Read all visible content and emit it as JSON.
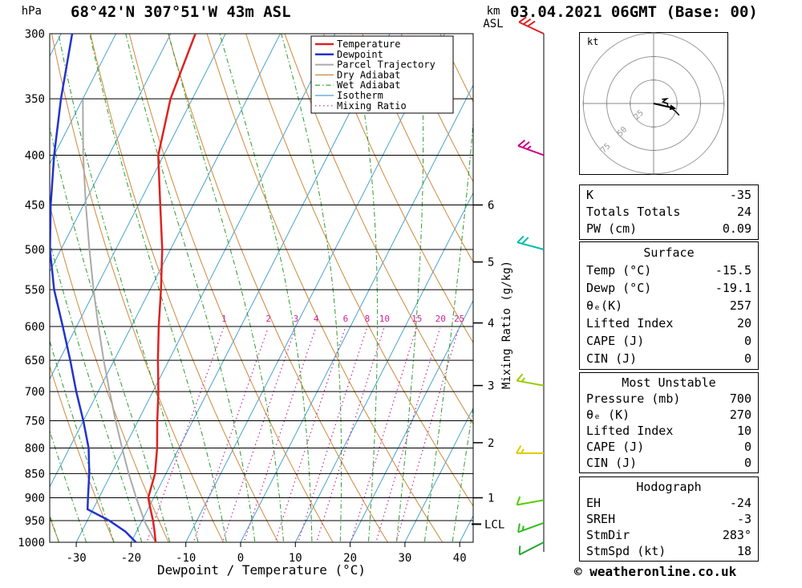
{
  "header": {
    "station_title": "68°42'N 307°51'W 43m ASL",
    "datetime_title": "03.04.2021 06GMT (Base: 00)",
    "pressure_unit": "hPa",
    "km_label": "km",
    "asl_label": "ASL"
  },
  "chart_data": {
    "type": "skewt-log-p",
    "xlabel": "Dewpoint / Temperature (°C)",
    "mixing_axis_label": "Mixing Ratio (g/kg)",
    "pressure_ticks": [
      300,
      350,
      400,
      450,
      500,
      550,
      600,
      650,
      700,
      750,
      800,
      850,
      900,
      950,
      1000
    ],
    "temp_ticks": [
      -30,
      -20,
      -10,
      0,
      10,
      20,
      30,
      40
    ],
    "pressure_range": [
      300,
      1000
    ],
    "temp_range_at_surface": [
      -35,
      42
    ],
    "grid": true,
    "km_ticks": [
      {
        "km": "6",
        "pressure": 450
      },
      {
        "km": "5",
        "pressure": 515
      },
      {
        "km": "4",
        "pressure": 595
      },
      {
        "km": "3",
        "pressure": 690
      },
      {
        "km": "2",
        "pressure": 790
      },
      {
        "km": "1",
        "pressure": 900
      }
    ],
    "lcl": {
      "label": "LCL",
      "pressure": 958
    },
    "mixing_ratio_labels": [
      "1",
      "2",
      "3",
      "4",
      "6",
      "8",
      "10",
      "15",
      "20",
      "25"
    ],
    "mixing_ratio_values": [
      1,
      2,
      3,
      4,
      6,
      8,
      10,
      15,
      20,
      25
    ],
    "temperature_profile": [
      [
        1000,
        -15.5
      ],
      [
        975,
        -16.7
      ],
      [
        950,
        -18
      ],
      [
        925,
        -19.5
      ],
      [
        900,
        -21
      ],
      [
        850,
        -22
      ],
      [
        800,
        -24
      ],
      [
        750,
        -26.5
      ],
      [
        700,
        -29
      ],
      [
        650,
        -32
      ],
      [
        600,
        -35
      ],
      [
        550,
        -38
      ],
      [
        500,
        -41.5
      ],
      [
        450,
        -46
      ],
      [
        400,
        -51
      ],
      [
        350,
        -54
      ],
      [
        300,
        -55.5
      ]
    ],
    "dewpoint_profile": [
      [
        1000,
        -19.1
      ],
      [
        975,
        -22
      ],
      [
        950,
        -26
      ],
      [
        925,
        -31
      ],
      [
        900,
        -32
      ],
      [
        850,
        -34
      ],
      [
        800,
        -36.5
      ],
      [
        750,
        -40
      ],
      [
        700,
        -44
      ],
      [
        650,
        -48
      ],
      [
        600,
        -52.5
      ],
      [
        550,
        -57.5
      ],
      [
        500,
        -62
      ],
      [
        450,
        -66
      ],
      [
        400,
        -70
      ],
      [
        350,
        -74
      ],
      [
        300,
        -78
      ]
    ],
    "parcel_profile": [
      [
        1000,
        -15.5
      ],
      [
        960,
        -18.8
      ],
      [
        950,
        -19.6
      ],
      [
        900,
        -23.2
      ],
      [
        850,
        -26.8
      ],
      [
        800,
        -30.4
      ],
      [
        750,
        -34.1
      ],
      [
        700,
        -37.9
      ],
      [
        650,
        -41.9
      ],
      [
        600,
        -46
      ],
      [
        550,
        -50.3
      ],
      [
        500,
        -54.8
      ],
      [
        450,
        -59.6
      ],
      [
        400,
        -64.7
      ],
      [
        350,
        -70
      ]
    ],
    "colors": {
      "temperature": "#dd2222",
      "dewpoint": "#2233cc",
      "parcel": "#aaaaaa",
      "dry_adiabat": "#cc8a3c",
      "wet_adiabat": "#2a9a2a",
      "isotherm": "#4aa2cc",
      "mixing_ratio": "#cc2299",
      "grid": "#000000"
    }
  },
  "legend": [
    {
      "label": "Temperature",
      "color": "#dd2222",
      "dash": "",
      "width": 2.5
    },
    {
      "label": "Dewpoint",
      "color": "#2233cc",
      "dash": "",
      "width": 2.5
    },
    {
      "label": "Parcel Trajectory",
      "color": "#aaaaaa",
      "dash": "",
      "width": 2
    },
    {
      "label": "Dry Adiabat",
      "color": "#cc8a3c",
      "dash": "",
      "width": 1.2
    },
    {
      "label": "Wet Adiabat",
      "color": "#2a9a2a",
      "dash": "6 3 1.5 3",
      "width": 1.2
    },
    {
      "label": "Isotherm",
      "color": "#4aa2cc",
      "dash": "",
      "width": 1.2
    },
    {
      "label": "Mixing Ratio",
      "color": "#cc2299",
      "dash": "1.5 3.5",
      "width": 1.2
    }
  ],
  "wind_barbs": [
    {
      "pressure": 300,
      "dir": 295,
      "speed": 30,
      "color": "#dd2222"
    },
    {
      "pressure": 400,
      "dir": 290,
      "speed": 25,
      "color": "#cc0088"
    },
    {
      "pressure": 500,
      "dir": 285,
      "speed": 20,
      "color": "#00bbaa"
    },
    {
      "pressure": 690,
      "dir": 280,
      "speed": 15,
      "color": "#99cc00"
    },
    {
      "pressure": 810,
      "dir": 270,
      "speed": 15,
      "color": "#ddcc00"
    },
    {
      "pressure": 905,
      "dir": 260,
      "speed": 10,
      "color": "#55cc00"
    },
    {
      "pressure": 955,
      "dir": 250,
      "speed": 15,
      "color": "#33bb22"
    },
    {
      "pressure": 1000,
      "dir": 243,
      "speed": 10,
      "color": "#22aa33"
    }
  ],
  "hodograph": {
    "unit_label": "kt",
    "rings": [
      25,
      50,
      75
    ],
    "storm_dir_deg": 283,
    "storm_speed_kt": 18
  },
  "tables": [
    {
      "header": null,
      "rows": [
        [
          "K",
          "-35"
        ],
        [
          "Totals Totals",
          "24"
        ],
        [
          "PW (cm)",
          "0.09"
        ]
      ]
    },
    {
      "header": "Surface",
      "rows": [
        [
          "Temp (°C)",
          "-15.5"
        ],
        [
          "Dewp (°C)",
          "-19.1"
        ],
        [
          "θₑ(K)",
          "257"
        ],
        [
          "Lifted Index",
          "20"
        ],
        [
          "CAPE (J)",
          "0"
        ],
        [
          "CIN (J)",
          "0"
        ]
      ]
    },
    {
      "header": "Most Unstable",
      "rows": [
        [
          "Pressure (mb)",
          "700"
        ],
        [
          "θₑ (K)",
          "270"
        ],
        [
          "Lifted Index",
          "10"
        ],
        [
          "CAPE (J)",
          "0"
        ],
        [
          "CIN (J)",
          "0"
        ]
      ]
    },
    {
      "header": "Hodograph",
      "rows": [
        [
          "EH",
          "-24"
        ],
        [
          "SREH",
          "-3"
        ],
        [
          "StmDir",
          "283°"
        ],
        [
          "StmSpd (kt)",
          "18"
        ]
      ]
    }
  ],
  "footer": {
    "copyright": "© weatheronline.co.uk"
  }
}
